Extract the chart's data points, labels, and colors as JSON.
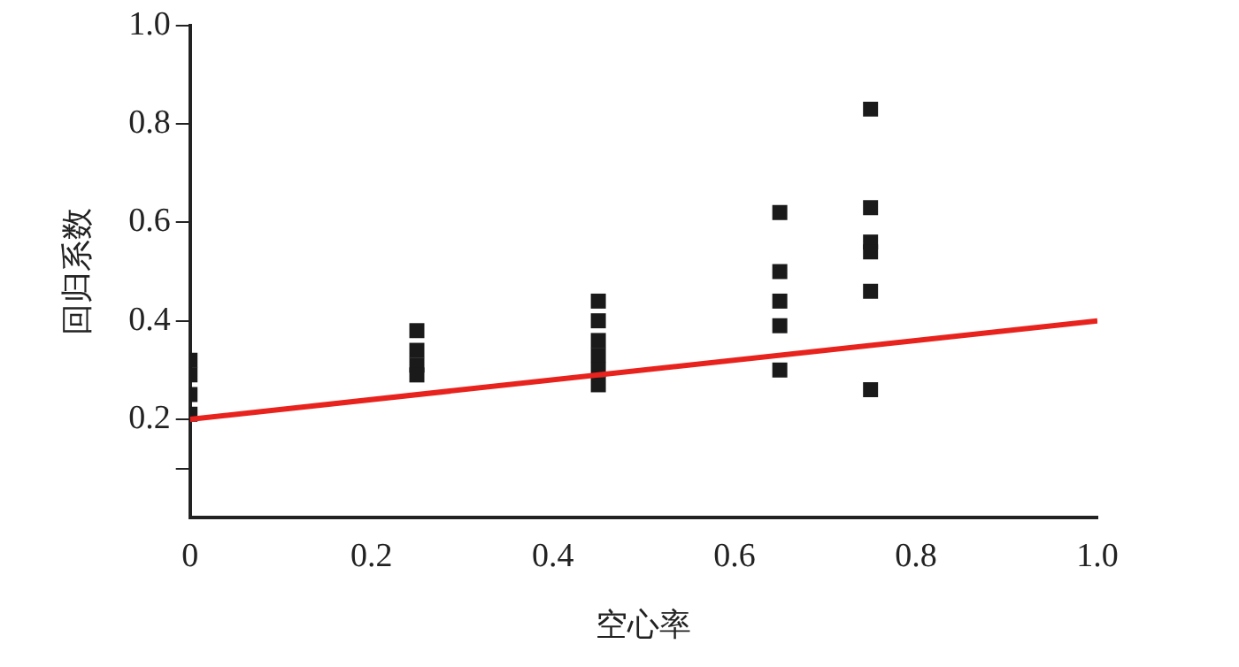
{
  "chart_data": {
    "type": "scatter",
    "xlabel": "空心率",
    "ylabel": "回归系数",
    "xlim": [
      0,
      1.0
    ],
    "ylim": [
      0,
      1.0
    ],
    "xticks": [
      {
        "value": 0,
        "label": "0"
      },
      0.2,
      0.4,
      0.6,
      0.8,
      {
        "value": 1.0,
        "label": "1.0"
      }
    ],
    "yticks": [
      {
        "value": 0.1,
        "label": null
      },
      0.2,
      0.4,
      0.6,
      0.8,
      {
        "value": 1.0,
        "label": "1.0"
      }
    ],
    "series": [
      {
        "color": "#1a1a1a",
        "marker": "square",
        "x": [
          0,
          0,
          0,
          0,
          0.25,
          0.25,
          0.25,
          0.25,
          0.45,
          0.45,
          0.45,
          0.45,
          0.45,
          0.45,
          0.65,
          0.65,
          0.65,
          0.65,
          0.65,
          0.75,
          0.75,
          0.75,
          0.75,
          0.75,
          0.75
        ],
        "values": [
          0.21,
          0.25,
          0.29,
          0.32,
          0.38,
          0.34,
          0.31,
          0.29,
          0.44,
          0.4,
          0.36,
          0.33,
          0.3,
          0.27,
          0.62,
          0.5,
          0.44,
          0.39,
          0.3,
          0.83,
          0.63,
          0.56,
          0.54,
          0.46,
          0.26
        ]
      },
      {
        "type": "line",
        "marker": "none",
        "color": "#e8231e",
        "x": [
          0,
          1.0
        ],
        "values": [
          0.2,
          0.4
        ]
      }
    ]
  }
}
